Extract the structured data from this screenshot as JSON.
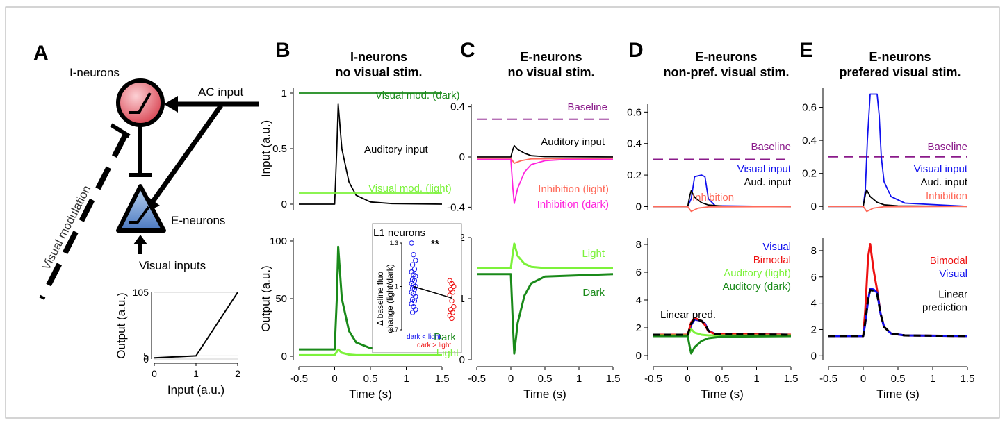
{
  "panel_letters": {
    "A": "A",
    "B": "B",
    "C": "C",
    "D": "D",
    "E": "E"
  },
  "colors": {
    "dark_green": "#1a8a1a",
    "light_green": "#7cf23a",
    "magenta": "#ff22dd",
    "salmon": "#ff6a5a",
    "purple": "#8a1a8a",
    "blue": "#1010ee",
    "red": "#ee1111",
    "black": "#000000",
    "i_neuron_fill": "#e8606a",
    "e_neuron_fill": "#6a9ad8"
  },
  "panelA": {
    "i_neurons": "I-neurons",
    "ac_input": "AC input",
    "e_neurons": "E-neurons",
    "visual_inputs": "Visual inputs",
    "visual_modulation": "Visual modulation",
    "transfer_chart": {
      "type": "line",
      "xlabel": "Input (a.u.)",
      "ylabel": "Output (a.u.)",
      "xticks": [
        "0",
        "1",
        "2"
      ],
      "yticks": [
        "0",
        "5",
        "105"
      ],
      "xlim": [
        0,
        2
      ],
      "ylim": [
        0,
        105
      ],
      "points": [
        [
          0,
          2
        ],
        [
          1,
          5
        ],
        [
          2,
          105
        ]
      ]
    }
  },
  "chart_data": [
    {
      "panel": "B-top",
      "type": "line",
      "title": "I-neurons\nno visual stim.",
      "title_line1": "I-neurons",
      "title_line2": "no visual stim.",
      "ylabel": "Input (a.u.)",
      "xlim": [
        -0.5,
        1.5
      ],
      "ylim": [
        -0.05,
        1.05
      ],
      "yticks": [
        "0",
        "0.5",
        "1"
      ],
      "series": [
        {
          "name": "Visual mod. (dark)",
          "color": "dark_green",
          "x": [
            -0.5,
            1.5
          ],
          "y": [
            1.0,
            1.0
          ]
        },
        {
          "name": "Auditory input",
          "color": "black",
          "x": [
            -0.5,
            0.0,
            0.03,
            0.05,
            0.1,
            0.2,
            0.3,
            0.5,
            0.8,
            1.5
          ],
          "y": [
            0,
            0,
            0.5,
            0.9,
            0.5,
            0.2,
            0.08,
            0.02,
            0.005,
            0
          ]
        },
        {
          "name": "Visual mod. (light)",
          "color": "light_green",
          "x": [
            -0.5,
            1.5
          ],
          "y": [
            0.1,
            0.1
          ]
        }
      ]
    },
    {
      "panel": "B-bottom",
      "type": "line",
      "ylabel": "Output (a.u.)",
      "xlabel": "Time (s)",
      "xlim": [
        -0.5,
        1.5
      ],
      "ylim": [
        -3,
        103
      ],
      "xticks": [
        "-0.5",
        "0",
        "0.5",
        "1",
        "1.5"
      ],
      "yticks": [
        "0",
        "50",
        "100"
      ],
      "series": [
        {
          "name": "Dark",
          "color": "dark_green",
          "x": [
            -0.5,
            0.0,
            0.03,
            0.05,
            0.1,
            0.2,
            0.3,
            0.5,
            1.5
          ],
          "y": [
            6,
            6,
            50,
            95,
            50,
            22,
            12,
            7,
            6
          ]
        },
        {
          "name": "Light",
          "color": "light_green",
          "x": [
            -0.5,
            0.0,
            0.05,
            0.1,
            0.2,
            0.3,
            1.5
          ],
          "y": [
            1,
            1,
            6,
            3,
            1.5,
            1,
            1
          ]
        }
      ]
    },
    {
      "panel": "B-inset",
      "type": "scatter",
      "title": "L1 neurons",
      "ylabel_line1": "Δ baseline fluo",
      "ylabel_line2": "change (light/dark)",
      "ylim": [
        0.7,
        1.3
      ],
      "yticks": [
        "0.7",
        "1",
        "1.3"
      ],
      "significance": "**",
      "group_labels": [
        "dark < light",
        "dark > light"
      ],
      "groups": [
        {
          "name": "dark < light",
          "color": "blue",
          "values": [
            1.3,
            1.22,
            1.18,
            1.15,
            1.12,
            1.1,
            1.08,
            1.07,
            1.05,
            1.04,
            1.02,
            1.01,
            1.0,
            0.99,
            0.98,
            0.96,
            0.95,
            0.93,
            0.91,
            0.9,
            0.88,
            0.86,
            0.84,
            0.82
          ]
        },
        {
          "name": "dark > light",
          "color": "red",
          "values": [
            1.04,
            1.02,
            1.0,
            0.98,
            0.96,
            0.94,
            0.9,
            0.86,
            0.84,
            0.82,
            0.8,
            0.78
          ]
        }
      ],
      "mean_line": [
        1.0,
        0.92
      ]
    },
    {
      "panel": "C-top",
      "type": "line",
      "title_line1": "E-neurons",
      "title_line2": "no visual stim.",
      "xlim": [
        -0.5,
        1.5
      ],
      "ylim": [
        -0.42,
        0.42
      ],
      "yticks": [
        "-0.4",
        "0",
        "0.4"
      ],
      "series": [
        {
          "name": "Baseline",
          "color": "purple",
          "dashed": true,
          "x": [
            -0.5,
            1.5
          ],
          "y": [
            0.3,
            0.3
          ]
        },
        {
          "name": "Auditory input",
          "color": "black",
          "x": [
            -0.5,
            0.0,
            0.03,
            0.05,
            0.1,
            0.2,
            0.3,
            0.5,
            1.5
          ],
          "y": [
            0,
            0,
            0.06,
            0.09,
            0.06,
            0.03,
            0.01,
            0.003,
            0
          ]
        },
        {
          "name": "Inhibition (light)",
          "color": "salmon",
          "x": [
            -0.5,
            0.0,
            0.05,
            0.15,
            0.3,
            1.5
          ],
          "y": [
            -0.01,
            -0.01,
            -0.05,
            -0.03,
            -0.015,
            -0.01
          ]
        },
        {
          "name": "Inhibition (dark)",
          "color": "magenta",
          "x": [
            -0.5,
            0.0,
            0.03,
            0.05,
            0.1,
            0.2,
            0.3,
            0.5,
            0.8,
            1.5
          ],
          "y": [
            -0.02,
            -0.02,
            -0.25,
            -0.37,
            -0.25,
            -0.12,
            -0.06,
            -0.03,
            -0.02,
            -0.02
          ]
        }
      ]
    },
    {
      "panel": "C-bottom",
      "type": "line",
      "xlabel": "Time (s)",
      "xlim": [
        -0.5,
        1.5
      ],
      "ylim": [
        0,
        2
      ],
      "xticks": [
        "-0.5",
        "0",
        "0.5",
        "1",
        "1.5"
      ],
      "yticks": [
        "0",
        "1",
        "2"
      ],
      "series": [
        {
          "name": "Light",
          "color": "light_green",
          "x": [
            -0.5,
            0.0,
            0.03,
            0.05,
            0.1,
            0.2,
            0.3,
            0.5,
            1.5
          ],
          "y": [
            1.5,
            1.5,
            1.75,
            1.9,
            1.7,
            1.57,
            1.52,
            1.5,
            1.5
          ]
        },
        {
          "name": "Dark",
          "color": "dark_green",
          "x": [
            -0.5,
            0.0,
            0.03,
            0.05,
            0.1,
            0.2,
            0.3,
            0.5,
            1.5
          ],
          "y": [
            1.4,
            1.4,
            0.6,
            0.1,
            0.6,
            1.05,
            1.25,
            1.36,
            1.4
          ]
        }
      ]
    },
    {
      "panel": "D-top",
      "type": "line",
      "title_line1": "E-neurons",
      "title_line2": "non-pref. visual stim.",
      "xlim": [
        -0.5,
        1.5
      ],
      "ylim": [
        -0.02,
        0.65
      ],
      "yticks": [
        "0",
        "0.2",
        "0.4",
        "0.6"
      ],
      "series": [
        {
          "name": "Baseline",
          "color": "purple",
          "dashed": true,
          "x": [
            -0.5,
            1.5
          ],
          "y": [
            0.3,
            0.3
          ]
        },
        {
          "name": "Visual input",
          "color": "blue",
          "x": [
            -0.5,
            0.0,
            0.05,
            0.1,
            0.2,
            0.25,
            0.3,
            0.4,
            1.5
          ],
          "y": [
            0,
            0,
            0.05,
            0.19,
            0.2,
            0.19,
            0.05,
            0.005,
            0
          ]
        },
        {
          "name": "Aud. input",
          "color": "black",
          "x": [
            -0.5,
            0.0,
            0.03,
            0.05,
            0.1,
            0.2,
            0.3,
            0.5,
            1.5
          ],
          "y": [
            0,
            0,
            0.07,
            0.1,
            0.06,
            0.025,
            0.01,
            0.003,
            0
          ]
        },
        {
          "name": "Inhibition",
          "color": "salmon",
          "x": [
            -0.5,
            0.0,
            0.05,
            0.15,
            0.3,
            1.5
          ],
          "y": [
            0,
            0,
            -0.03,
            -0.01,
            -0.002,
            0
          ]
        }
      ]
    },
    {
      "panel": "D-bottom",
      "type": "line",
      "xlabel": "Time (s)",
      "xlim": [
        -0.5,
        1.5
      ],
      "ylim": [
        -0.3,
        8.5
      ],
      "xticks": [
        "-0.5",
        "0",
        "0.5",
        "1",
        "1.5"
      ],
      "yticks": [
        "0",
        "2",
        "4",
        "6",
        "8"
      ],
      "annotation": "Linear pred.",
      "series": [
        {
          "name": "Visual",
          "color": "blue",
          "x": [
            -0.5,
            0.0,
            0.05,
            0.1,
            0.2,
            0.25,
            0.3,
            0.4,
            1.5
          ],
          "y": [
            1.5,
            1.5,
            2.2,
            2.6,
            2.5,
            2.3,
            1.8,
            1.55,
            1.5
          ]
        },
        {
          "name": "Bimodal",
          "color": "red",
          "x": [
            -0.5,
            0.0,
            0.05,
            0.1,
            0.2,
            0.25,
            0.3,
            0.4,
            1.5
          ],
          "y": [
            1.5,
            1.5,
            2.4,
            2.7,
            2.5,
            2.2,
            1.75,
            1.55,
            1.5
          ]
        },
        {
          "name": "Auditory (light)",
          "color": "light_green",
          "x": [
            -0.5,
            0.0,
            0.05,
            0.1,
            0.2,
            0.3,
            1.5
          ],
          "y": [
            1.45,
            1.45,
            1.9,
            1.65,
            1.5,
            1.45,
            1.45
          ]
        },
        {
          "name": "Auditory (dark)",
          "color": "dark_green",
          "x": [
            -0.5,
            0.0,
            0.03,
            0.05,
            0.1,
            0.2,
            0.3,
            0.5,
            1.5
          ],
          "y": [
            1.4,
            1.4,
            0.6,
            0.15,
            0.6,
            1.05,
            1.25,
            1.36,
            1.4
          ]
        },
        {
          "name": "Linear pred.",
          "color": "black",
          "dashed": true,
          "x": [
            -0.5,
            0.0,
            0.05,
            0.1,
            0.2,
            0.25,
            0.3,
            0.4,
            1.5
          ],
          "y": [
            1.5,
            1.5,
            2.3,
            2.65,
            2.5,
            2.25,
            1.78,
            1.55,
            1.5
          ]
        }
      ]
    },
    {
      "panel": "E-top",
      "type": "line",
      "title_line1": "E-neurons",
      "title_line2": "prefered visual stim.",
      "xlim": [
        -0.5,
        1.5
      ],
      "ylim": [
        -0.02,
        0.72
      ],
      "yticks": [
        "0",
        "0.2",
        "0.4",
        "0.6"
      ],
      "series": [
        {
          "name": "Baseline",
          "color": "purple",
          "dashed": true,
          "x": [
            -0.5,
            1.5
          ],
          "y": [
            0.3,
            0.3
          ]
        },
        {
          "name": "Visual input",
          "color": "blue",
          "x": [
            -0.5,
            0.0,
            0.03,
            0.06,
            0.1,
            0.2,
            0.23,
            0.26,
            0.3,
            0.4,
            0.6,
            1.5
          ],
          "y": [
            0,
            0,
            0.1,
            0.4,
            0.68,
            0.68,
            0.55,
            0.3,
            0.15,
            0.06,
            0.02,
            0
          ]
        },
        {
          "name": "Aud. input",
          "color": "black",
          "x": [
            -0.5,
            0.0,
            0.03,
            0.05,
            0.1,
            0.2,
            0.3,
            0.5,
            1.5
          ],
          "y": [
            0,
            0,
            0.07,
            0.1,
            0.06,
            0.025,
            0.01,
            0.003,
            0
          ]
        },
        {
          "name": "Inhibition",
          "color": "salmon",
          "x": [
            -0.5,
            0.0,
            0.05,
            0.15,
            0.3,
            1.5
          ],
          "y": [
            0,
            0,
            -0.03,
            -0.01,
            -0.002,
            0
          ]
        }
      ]
    },
    {
      "panel": "E-bottom",
      "type": "line",
      "xlabel": "Time (s)",
      "xlim": [
        -0.5,
        1.5
      ],
      "ylim": [
        -0.3,
        9
      ],
      "xticks": [
        "-0.5",
        "0",
        "0.5",
        "1",
        "1.5"
      ],
      "yticks": [
        "0",
        "2",
        "4",
        "6",
        "8"
      ],
      "series": [
        {
          "name": "Bimodal",
          "color": "red",
          "x": [
            -0.5,
            0.0,
            0.03,
            0.07,
            0.1,
            0.15,
            0.2,
            0.25,
            0.3,
            0.4,
            0.6,
            1.5
          ],
          "y": [
            1.5,
            1.5,
            3.5,
            7.5,
            8.5,
            6.5,
            5.0,
            3.2,
            2.2,
            1.7,
            1.55,
            1.5
          ]
        },
        {
          "name": "Visual",
          "color": "blue",
          "x": [
            -0.5,
            0.0,
            0.03,
            0.07,
            0.1,
            0.15,
            0.2,
            0.25,
            0.3,
            0.4,
            0.6,
            1.5
          ],
          "y": [
            1.5,
            1.5,
            2.5,
            4.2,
            5.1,
            5.05,
            4.8,
            3.2,
            2.2,
            1.7,
            1.55,
            1.5
          ]
        },
        {
          "name": "Linear prediction",
          "color": "black",
          "dashed": true,
          "x": [
            -0.5,
            0.0,
            0.03,
            0.07,
            0.1,
            0.15,
            0.2,
            0.25,
            0.3,
            0.4,
            0.6,
            1.5
          ],
          "y": [
            1.5,
            1.5,
            2.6,
            4.3,
            5.0,
            4.95,
            4.7,
            3.2,
            2.2,
            1.7,
            1.55,
            1.5
          ]
        }
      ]
    }
  ],
  "labels": {
    "legend_d_visual": "Visual",
    "legend_d_bimodal": "Bimodal",
    "legend_d_aud_light": "Auditory (light)",
    "legend_d_aud_dark": "Auditory (dark)",
    "legend_e_bimodal": "Bimodal",
    "legend_e_visual": "Visual",
    "legend_e_linear1": "Linear",
    "legend_e_linear2": "prediction",
    "d_top_visual": "Visual input",
    "d_top_aud": "Aud. input",
    "d_top_inh": "Inhibition",
    "d_top_baseline": "Baseline",
    "e_top_visual": "Visual input",
    "e_top_aud": "Aud. input",
    "e_top_inh": "Inhibition",
    "e_top_baseline": "Baseline",
    "c_top_baseline": "Baseline",
    "c_top_aud": "Auditory input",
    "c_top_inh_light": "Inhibition (light)",
    "c_top_inh_dark": "Inhibition (dark)",
    "c_bot_light": "Light",
    "c_bot_dark": "Dark",
    "b_top_vis_dark": "Visual mod. (dark)",
    "b_top_aud": "Auditory input",
    "b_top_vis_light": "Visual mod. (light)",
    "b_bot_dark": "Dark",
    "b_bot_light": "Light"
  }
}
